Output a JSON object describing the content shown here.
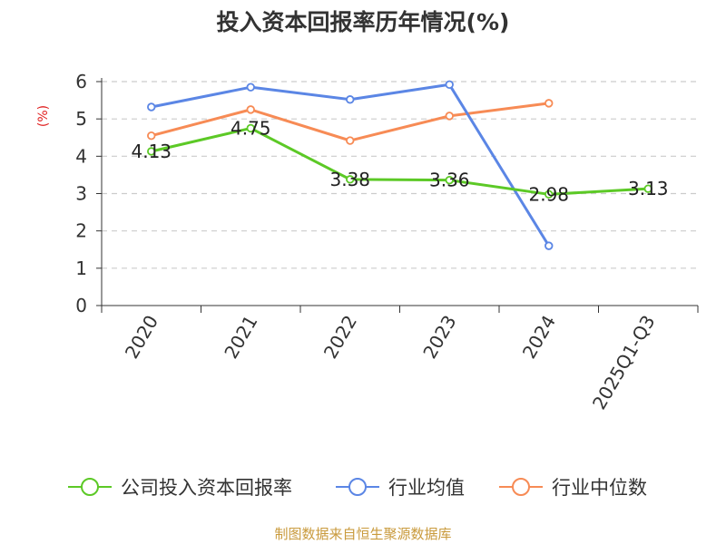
{
  "chart_data": {
    "type": "line",
    "title": "投入资本回报率历年情况(%)",
    "ylabel": "(%)",
    "categories": [
      "2020",
      "2021",
      "2022",
      "2023",
      "2024",
      "2025Q1-Q3"
    ],
    "y_ticks": [
      "0",
      "1",
      "2",
      "3",
      "4",
      "5",
      "6"
    ],
    "ylim": [
      0,
      6
    ],
    "grid": true,
    "legend_position": "bottom",
    "series": [
      {
        "name": "公司投入资本回报率",
        "color": "#5cc926",
        "values": [
          4.13,
          4.75,
          3.38,
          3.36,
          2.98,
          3.13
        ],
        "labels": [
          "4.13",
          "4.75",
          "3.38",
          "3.36",
          "2.98",
          "3.13"
        ]
      },
      {
        "name": "行业均值",
        "color": "#5b86e5",
        "values": [
          5.32,
          5.85,
          5.52,
          5.92,
          1.6,
          null
        ]
      },
      {
        "name": "行业中位数",
        "color": "#f78b55",
        "values": [
          4.55,
          5.25,
          4.42,
          5.08,
          5.42,
          null
        ]
      }
    ]
  },
  "footer": {
    "source": "制图数据来自恒生聚源数据库"
  },
  "colors": {
    "title": "#333333",
    "axis": "#333333",
    "grid": "#cccccc",
    "ylabel": "#e02020",
    "source": "#c99a3c"
  }
}
